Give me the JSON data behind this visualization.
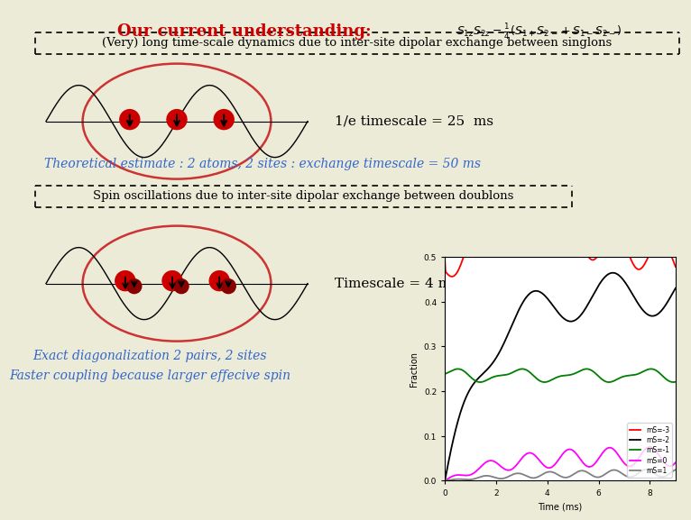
{
  "title": "Our current understanding:",
  "title_color": "#CC0000",
  "bg_color": "#EBEBD8",
  "box1_text": "(Very) long time-scale dynamics due to inter-site dipolar exchange between singlons",
  "timescale1_text": "1/e timescale = 25  ms",
  "theoretical_text": "Theoretical estimate : 2 atoms, 2 sites : exchange timescale = 50 ms",
  "theoretical_color": "#3366CC",
  "box2_text": "Spin oscillations due to inter-site dipolar exchange between doublons",
  "timescale2_text": "Timescale = 4 ms",
  "exact_diag_text1": "Exact diagonalization 2 pairs, 2 sites",
  "exact_diag_text2": "Faster coupling because larger effecive spin",
  "exact_diag_color": "#3366CC",
  "ellipse_color": "#CC3333",
  "font_family": "DejaVu Serif"
}
